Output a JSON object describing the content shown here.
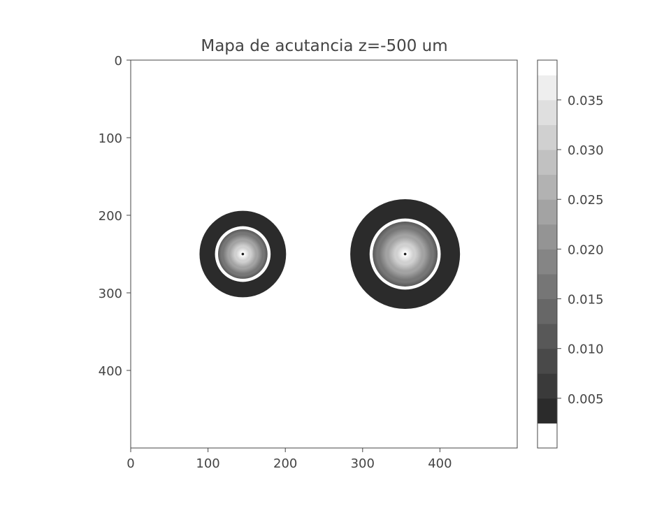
{
  "chart_data": {
    "type": "heatmap",
    "title": "Mapa de acutancia z=-500 um",
    "xlabel": "",
    "ylabel": "",
    "xlim": [
      0,
      500
    ],
    "ylim": [
      500,
      0
    ],
    "x_ticks": [
      0,
      100,
      200,
      300,
      400
    ],
    "y_ticks": [
      0,
      100,
      200,
      300,
      400
    ],
    "colormap": "gray",
    "colorbar": {
      "range": [
        0.0,
        0.039
      ],
      "levels": [
        0.0,
        0.0025,
        0.005,
        0.0075,
        0.01,
        0.0125,
        0.015,
        0.0175,
        0.02,
        0.0225,
        0.025,
        0.0275,
        0.03,
        0.0325,
        0.035,
        0.0375,
        0.039
      ],
      "ticks": [
        0.005,
        0.01,
        0.015,
        0.02,
        0.025,
        0.03,
        0.035
      ],
      "tick_labels": [
        "0.005",
        "0.010",
        "0.015",
        "0.020",
        "0.025",
        "0.030",
        "0.035"
      ],
      "high_color": "#ffffff",
      "low_color": "#141414"
    },
    "background_value": 0.039,
    "spots": [
      {
        "center": [
          145,
          250
        ],
        "outer_ring_radius": 56,
        "outer_ring_value": 0.004,
        "white_ring_radius": 36,
        "white_ring_value": 0.039,
        "inner_radius": 32,
        "inner_profile": {
          "center": 0.002,
          "peak_radius": 2,
          "peak": 0.039,
          "edge": 0.012
        }
      },
      {
        "center": [
          355,
          250
        ],
        "outer_ring_radius": 71,
        "outer_ring_value": 0.004,
        "white_ring_radius": 46,
        "white_ring_value": 0.039,
        "inner_radius": 42,
        "inner_profile": {
          "center": 0.002,
          "peak_radius": 2,
          "peak": 0.039,
          "edge": 0.012
        }
      }
    ]
  }
}
